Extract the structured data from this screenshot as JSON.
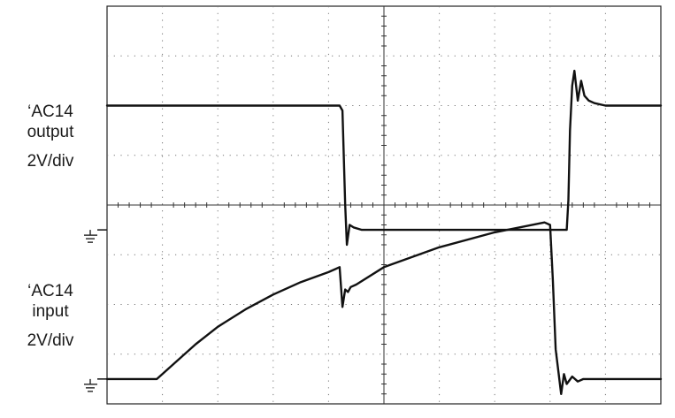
{
  "chart_data": {
    "type": "line",
    "title": "",
    "grid": true,
    "x_divisions": 10,
    "y_divisions": 8,
    "channels": [
      {
        "name": "'AC14 output",
        "line1": "‘AC14",
        "line2": "output",
        "scale": "2V/div",
        "ground_div": 3.5,
        "x": [
          0,
          4.2,
          4.25,
          4.3,
          4.33,
          4.38,
          4.45,
          4.6,
          5.0,
          6.0,
          7.0,
          8.3,
          8.33,
          8.36,
          8.4,
          8.44,
          8.5,
          8.56,
          8.62,
          8.7,
          8.8,
          9.0,
          10.0
        ],
        "y": [
          2.5,
          2.5,
          2.4,
          0.5,
          -0.3,
          0.1,
          0.05,
          0.0,
          0.0,
          0.0,
          0.0,
          0.0,
          0.6,
          2.0,
          2.9,
          3.2,
          2.6,
          3.0,
          2.7,
          2.6,
          2.55,
          2.5,
          2.5
        ]
      },
      {
        "name": "'AC14 input",
        "line1": "‘AC14",
        "line2": "input",
        "scale": "2V/div",
        "ground_div": 0.5,
        "x": [
          0,
          0.9,
          1.2,
          1.6,
          2.0,
          2.5,
          3.0,
          3.5,
          4.0,
          4.2,
          4.25,
          4.3,
          4.35,
          4.4,
          4.5,
          5.0,
          6.0,
          7.0,
          7.9,
          8.0,
          8.05,
          8.1,
          8.2,
          8.25,
          8.3,
          8.4,
          8.5,
          8.6,
          8.8,
          10.0
        ],
        "y": [
          0.0,
          0.0,
          0.3,
          0.7,
          1.05,
          1.4,
          1.7,
          1.95,
          2.15,
          2.25,
          1.45,
          1.8,
          1.75,
          1.85,
          1.9,
          2.25,
          2.65,
          2.95,
          3.15,
          3.1,
          2.0,
          0.6,
          -0.3,
          0.1,
          -0.1,
          0.05,
          -0.05,
          0.0,
          0.0,
          0.0
        ]
      }
    ]
  }
}
